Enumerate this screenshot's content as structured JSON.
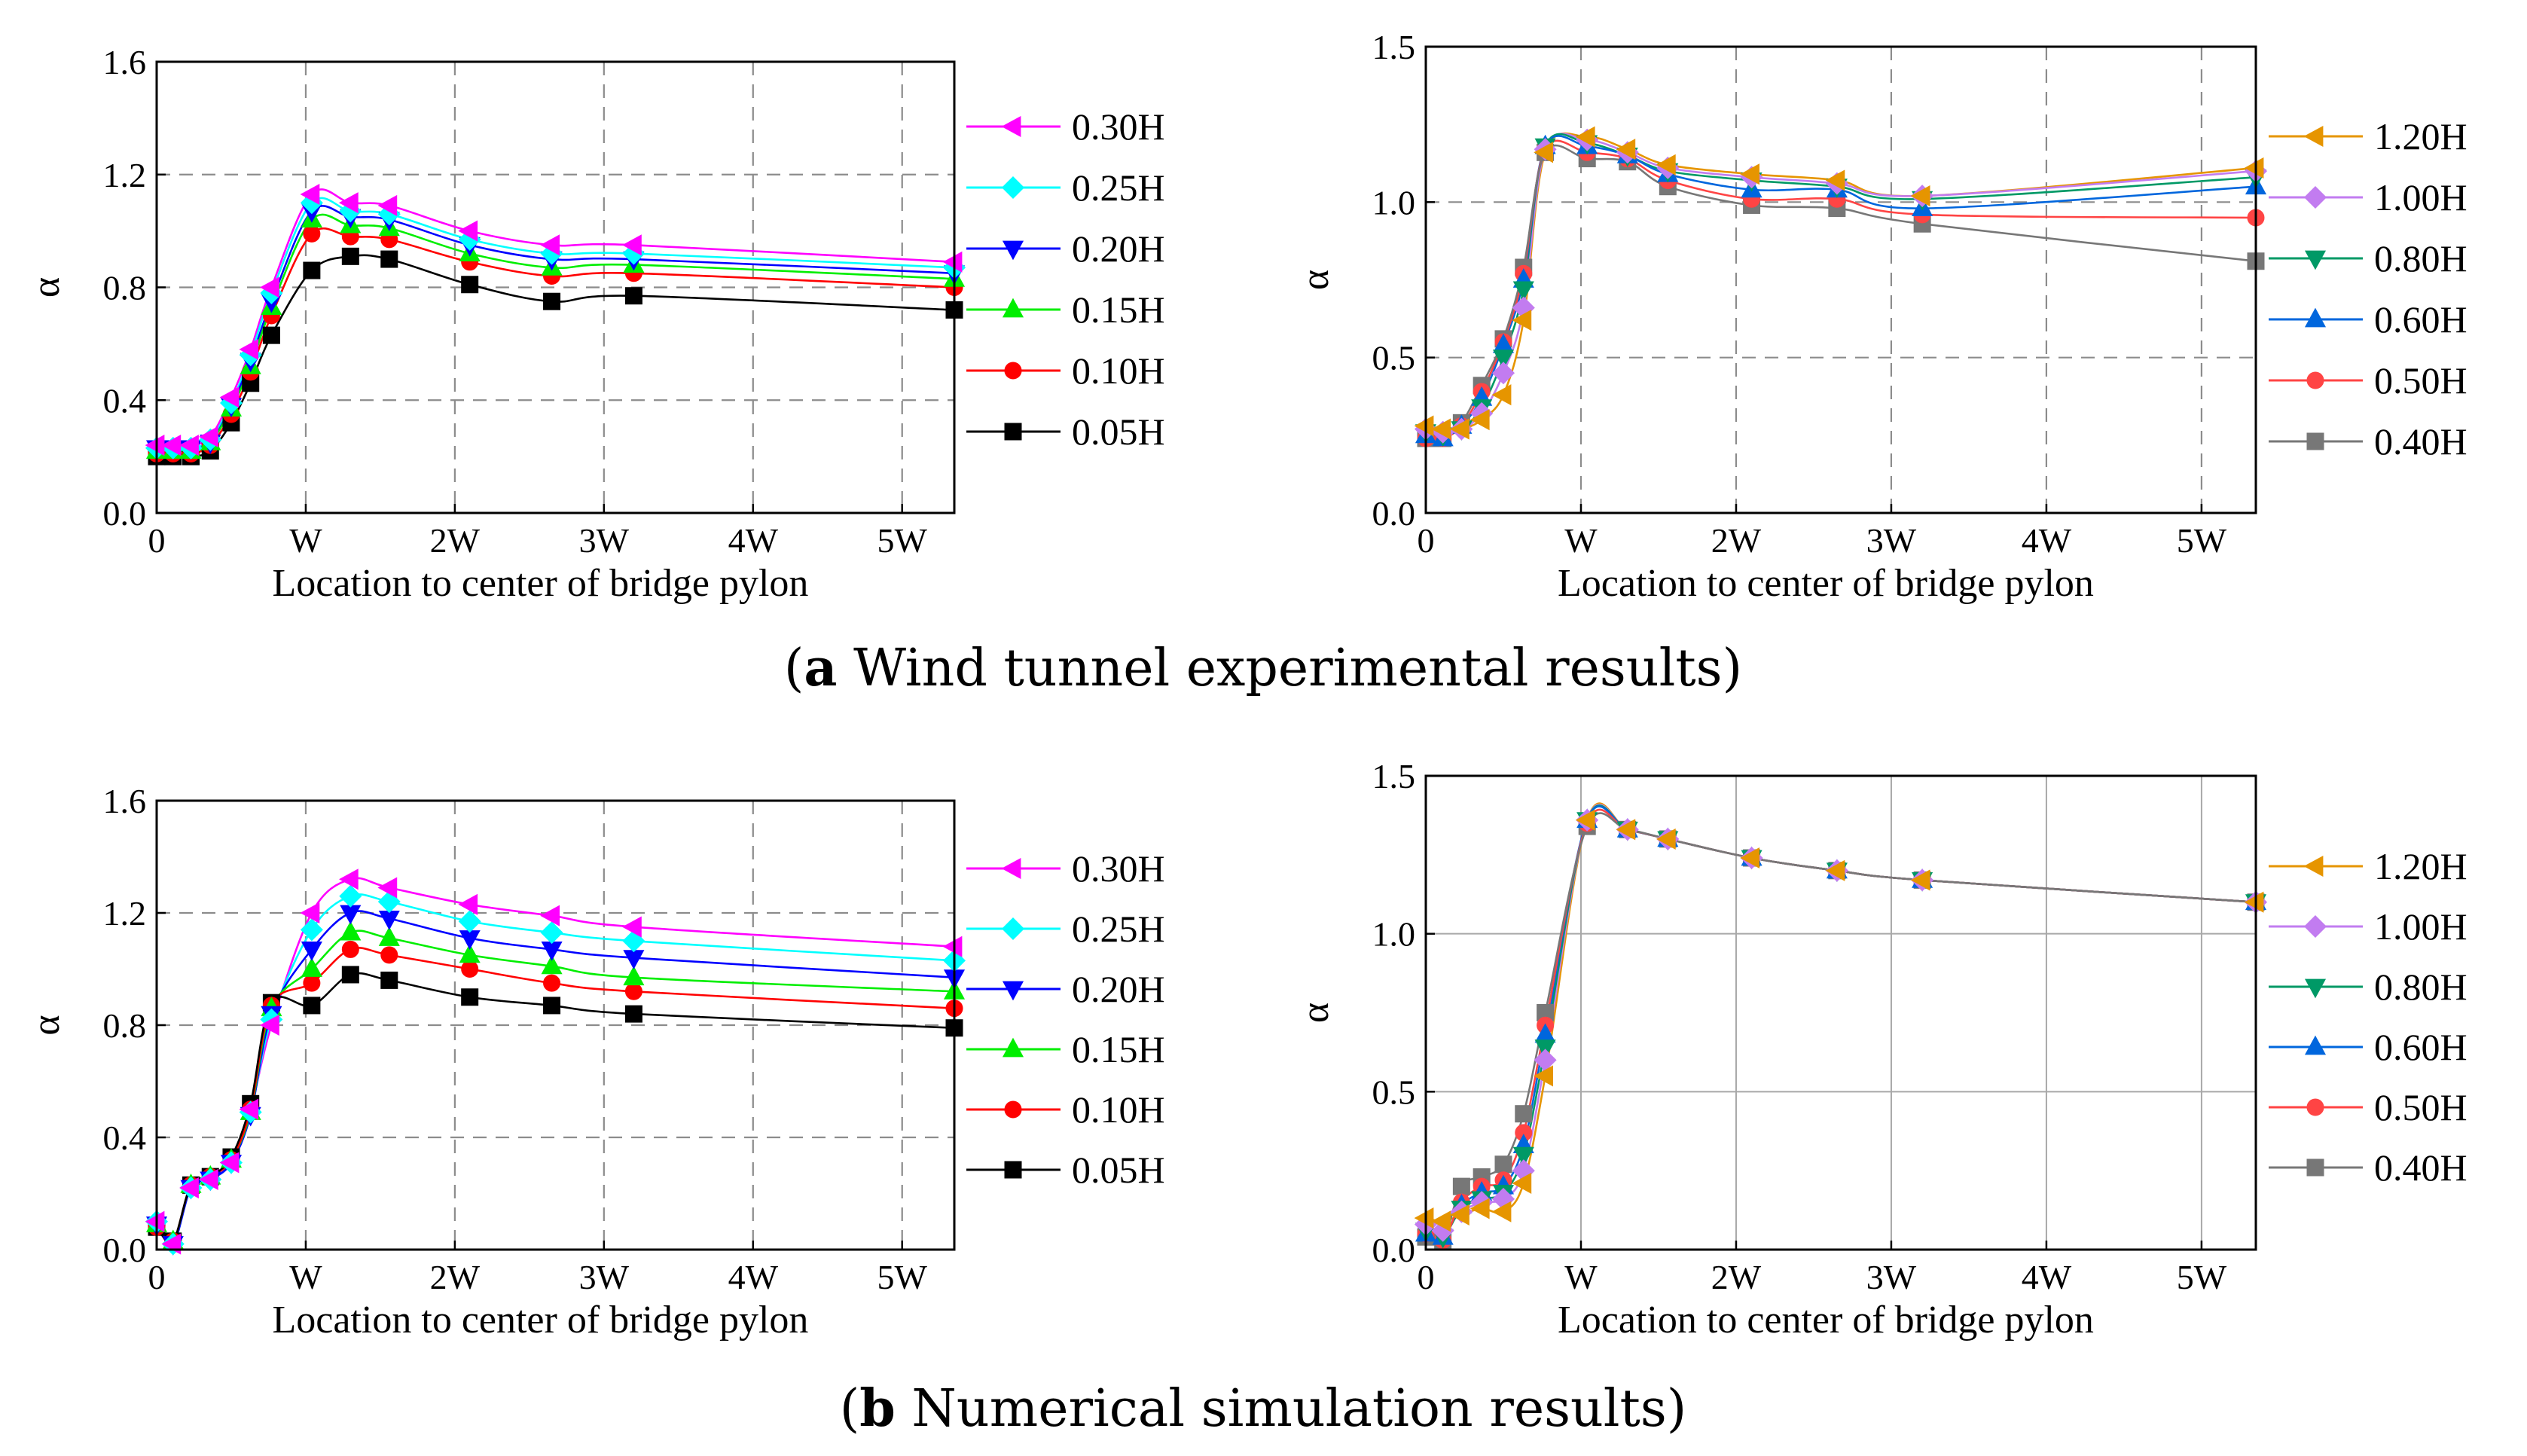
{
  "captions": {
    "a_label": "a",
    "a_text": " Wind tunnel experimental results",
    "b_label": "b",
    "b_text": " Numerical simulation results"
  },
  "colors": {
    "magenta": "#ff00ff",
    "cyan": "#00ffff",
    "blue": "#0000ff",
    "green": "#00ee00",
    "red": "#ff0000",
    "black": "#000000",
    "orange": "#e69500",
    "lavender": "#c27cf0",
    "teal": "#009966",
    "azure": "#0066dd",
    "salmon": "#ff4444",
    "gray": "#777777"
  },
  "chart_data": [
    {
      "id": "a-left",
      "type": "line",
      "grid": "dashed",
      "xlabel": "Location to center of bridge pylon",
      "ylabel": "α",
      "xlim": [
        0,
        5.35
      ],
      "ylim": [
        0,
        1.6
      ],
      "x_ticks": [
        0,
        1,
        2,
        3,
        4,
        5
      ],
      "x_tick_labels": [
        "0",
        "W",
        "2W",
        "3W",
        "4W",
        "5W"
      ],
      "y_ticks": [
        0,
        0.4,
        0.8,
        1.2,
        1.6
      ],
      "y_tick_labels": [
        "0.0",
        "0.4",
        "0.8",
        "1.2",
        "1.6"
      ],
      "x": [
        0.0,
        0.11,
        0.23,
        0.36,
        0.5,
        0.63,
        0.77,
        1.04,
        1.3,
        1.56,
        2.1,
        2.65,
        3.2,
        5.35
      ],
      "series": [
        {
          "name": "0.30H",
          "marker": "tri-left",
          "color": "#ff00ff",
          "values": [
            0.24,
            0.24,
            0.24,
            0.27,
            0.41,
            0.58,
            0.8,
            1.13,
            1.1,
            1.09,
            1.0,
            0.95,
            0.95,
            0.89
          ]
        },
        {
          "name": "0.25H",
          "marker": "diamond",
          "color": "#00ffff",
          "values": [
            0.23,
            0.23,
            0.23,
            0.26,
            0.39,
            0.56,
            0.78,
            1.1,
            1.07,
            1.06,
            0.97,
            0.92,
            0.92,
            0.87
          ]
        },
        {
          "name": "0.20H",
          "marker": "tri-down",
          "color": "#0000ff",
          "values": [
            0.23,
            0.23,
            0.23,
            0.25,
            0.38,
            0.54,
            0.75,
            1.07,
            1.05,
            1.04,
            0.95,
            0.9,
            0.9,
            0.85
          ]
        },
        {
          "name": "0.15H",
          "marker": "tri-up",
          "color": "#00ee00",
          "values": [
            0.22,
            0.22,
            0.22,
            0.25,
            0.37,
            0.52,
            0.73,
            1.04,
            1.02,
            1.01,
            0.92,
            0.87,
            0.88,
            0.83
          ]
        },
        {
          "name": "0.10H",
          "marker": "circle",
          "color": "#ff0000",
          "values": [
            0.21,
            0.21,
            0.21,
            0.24,
            0.35,
            0.5,
            0.7,
            0.99,
            0.98,
            0.97,
            0.89,
            0.84,
            0.85,
            0.8
          ]
        },
        {
          "name": "0.05H",
          "marker": "square",
          "color": "#000000",
          "values": [
            0.2,
            0.2,
            0.2,
            0.22,
            0.32,
            0.46,
            0.63,
            0.86,
            0.91,
            0.9,
            0.81,
            0.75,
            0.77,
            0.72
          ]
        }
      ]
    },
    {
      "id": "a-right",
      "type": "line",
      "grid": "dashed",
      "xlabel": "Location to center of bridge pylon",
      "ylabel": "α",
      "xlim": [
        0,
        5.35
      ],
      "ylim": [
        0,
        1.5
      ],
      "x_ticks": [
        0,
        1,
        2,
        3,
        4,
        5
      ],
      "x_tick_labels": [
        "0",
        "W",
        "2W",
        "3W",
        "4W",
        "5W"
      ],
      "y_ticks": [
        0,
        0.5,
        1.0,
        1.5
      ],
      "y_tick_labels": [
        "0.0",
        "0.5",
        "1.0",
        "1.5"
      ],
      "x": [
        0.0,
        0.11,
        0.23,
        0.36,
        0.5,
        0.63,
        0.77,
        1.04,
        1.3,
        1.56,
        2.1,
        2.65,
        3.2,
        5.35
      ],
      "series": [
        {
          "name": "1.20H",
          "marker": "tri-left",
          "color": "#e69500",
          "values": [
            0.28,
            0.27,
            0.27,
            0.3,
            0.38,
            0.62,
            1.16,
            1.21,
            1.17,
            1.12,
            1.09,
            1.07,
            1.02,
            1.11
          ]
        },
        {
          "name": "1.00H",
          "marker": "diamond",
          "color": "#c27cf0",
          "values": [
            0.27,
            0.26,
            0.27,
            0.32,
            0.45,
            0.66,
            1.17,
            1.2,
            1.16,
            1.11,
            1.08,
            1.06,
            1.02,
            1.1
          ]
        },
        {
          "name": "0.80H",
          "marker": "tri-down",
          "color": "#009966",
          "values": [
            0.26,
            0.25,
            0.27,
            0.34,
            0.5,
            0.72,
            1.18,
            1.19,
            1.15,
            1.1,
            1.07,
            1.05,
            1.01,
            1.08
          ]
        },
        {
          "name": "0.60H",
          "marker": "tri-up",
          "color": "#0066dd",
          "values": [
            0.25,
            0.24,
            0.28,
            0.37,
            0.54,
            0.75,
            1.18,
            1.18,
            1.15,
            1.09,
            1.04,
            1.04,
            0.98,
            1.05
          ]
        },
        {
          "name": "0.50H",
          "marker": "circle",
          "color": "#ff4444",
          "values": [
            0.24,
            0.24,
            0.28,
            0.39,
            0.55,
            0.77,
            1.17,
            1.16,
            1.14,
            1.07,
            1.01,
            1.01,
            0.96,
            0.95
          ]
        },
        {
          "name": "0.40H",
          "marker": "square",
          "color": "#777777",
          "values": [
            0.24,
            0.24,
            0.29,
            0.41,
            0.56,
            0.79,
            1.16,
            1.14,
            1.13,
            1.05,
            0.99,
            0.98,
            0.93,
            0.81
          ]
        }
      ]
    },
    {
      "id": "b-left",
      "type": "line",
      "grid": "dashed",
      "xlabel": "Location to center of bridge pylon",
      "ylabel": "α",
      "xlim": [
        0,
        5.35
      ],
      "ylim": [
        0,
        1.6
      ],
      "x_ticks": [
        0,
        1,
        2,
        3,
        4,
        5
      ],
      "x_tick_labels": [
        "0",
        "W",
        "2W",
        "3W",
        "4W",
        "5W"
      ],
      "y_ticks": [
        0,
        0.4,
        0.8,
        1.2,
        1.6
      ],
      "y_tick_labels": [
        "0.0",
        "0.4",
        "0.8",
        "1.2",
        "1.6"
      ],
      "x": [
        0.0,
        0.11,
        0.23,
        0.36,
        0.5,
        0.63,
        0.77,
        1.04,
        1.3,
        1.56,
        2.1,
        2.65,
        3.2,
        5.35
      ],
      "series": [
        {
          "name": "0.30H",
          "marker": "tri-left",
          "color": "#ff00ff",
          "values": [
            0.1,
            0.02,
            0.22,
            0.25,
            0.31,
            0.5,
            0.8,
            1.2,
            1.32,
            1.29,
            1.23,
            1.19,
            1.15,
            1.08
          ]
        },
        {
          "name": "0.25H",
          "marker": "diamond",
          "color": "#00ffff",
          "values": [
            0.1,
            0.02,
            0.22,
            0.25,
            0.31,
            0.49,
            0.82,
            1.14,
            1.26,
            1.24,
            1.17,
            1.13,
            1.1,
            1.03
          ]
        },
        {
          "name": "0.20H",
          "marker": "tri-down",
          "color": "#0000ff",
          "values": [
            0.09,
            0.02,
            0.22,
            0.25,
            0.31,
            0.48,
            0.84,
            1.07,
            1.2,
            1.18,
            1.11,
            1.07,
            1.04,
            0.97
          ]
        },
        {
          "name": "0.15H",
          "marker": "tri-up",
          "color": "#00ee00",
          "values": [
            0.09,
            0.03,
            0.23,
            0.26,
            0.32,
            0.49,
            0.86,
            1.0,
            1.13,
            1.11,
            1.05,
            1.01,
            0.97,
            0.92
          ]
        },
        {
          "name": "0.10H",
          "marker": "circle",
          "color": "#ff0000",
          "values": [
            0.08,
            0.03,
            0.23,
            0.26,
            0.32,
            0.5,
            0.87,
            0.95,
            1.07,
            1.05,
            1.0,
            0.95,
            0.92,
            0.86
          ]
        },
        {
          "name": "0.05H",
          "marker": "square",
          "color": "#000000",
          "values": [
            0.08,
            0.03,
            0.23,
            0.26,
            0.33,
            0.52,
            0.88,
            0.87,
            0.98,
            0.96,
            0.9,
            0.87,
            0.84,
            0.79
          ]
        }
      ]
    },
    {
      "id": "b-right",
      "type": "line",
      "grid": "solid",
      "xlabel": "Location to center of bridge pylon",
      "ylabel": "α",
      "xlim": [
        0,
        5.35
      ],
      "ylim": [
        0,
        1.5
      ],
      "x_ticks": [
        0,
        1,
        2,
        3,
        4,
        5
      ],
      "x_tick_labels": [
        "0",
        "W",
        "2W",
        "3W",
        "4W",
        "5W"
      ],
      "y_ticks": [
        0,
        0.5,
        1.0,
        1.5
      ],
      "y_tick_labels": [
        "0.0",
        "0.5",
        "1.0",
        "1.5"
      ],
      "x": [
        0.0,
        0.11,
        0.23,
        0.36,
        0.5,
        0.63,
        0.77,
        1.04,
        1.3,
        1.56,
        2.1,
        2.65,
        3.2,
        5.35
      ],
      "series": [
        {
          "name": "1.20H",
          "marker": "tri-left",
          "color": "#e69500",
          "values": [
            0.1,
            0.09,
            0.11,
            0.13,
            0.12,
            0.21,
            0.55,
            1.36,
            1.33,
            1.3,
            1.24,
            1.2,
            1.17,
            1.1
          ]
        },
        {
          "name": "1.00H",
          "marker": "diamond",
          "color": "#c27cf0",
          "values": [
            0.08,
            0.06,
            0.12,
            0.15,
            0.16,
            0.25,
            0.6,
            1.36,
            1.33,
            1.3,
            1.24,
            1.2,
            1.17,
            1.1
          ]
        },
        {
          "name": "0.80H",
          "marker": "tri-down",
          "color": "#009966",
          "values": [
            0.06,
            0.04,
            0.13,
            0.16,
            0.18,
            0.3,
            0.64,
            1.36,
            1.33,
            1.3,
            1.24,
            1.2,
            1.17,
            1.1
          ]
        },
        {
          "name": "0.60H",
          "marker": "tri-up",
          "color": "#0066dd",
          "values": [
            0.05,
            0.04,
            0.14,
            0.18,
            0.2,
            0.33,
            0.68,
            1.36,
            1.33,
            1.3,
            1.24,
            1.2,
            1.17,
            1.1
          ]
        },
        {
          "name": "0.50H",
          "marker": "circle",
          "color": "#ff4444",
          "values": [
            0.05,
            0.03,
            0.15,
            0.2,
            0.22,
            0.37,
            0.71,
            1.35,
            1.33,
            1.3,
            1.24,
            1.2,
            1.17,
            1.1
          ]
        },
        {
          "name": "0.40H",
          "marker": "square",
          "color": "#777777",
          "values": [
            0.04,
            0.03,
            0.2,
            0.23,
            0.27,
            0.43,
            0.75,
            1.34,
            1.33,
            1.3,
            1.24,
            1.2,
            1.17,
            1.1
          ]
        }
      ]
    }
  ]
}
